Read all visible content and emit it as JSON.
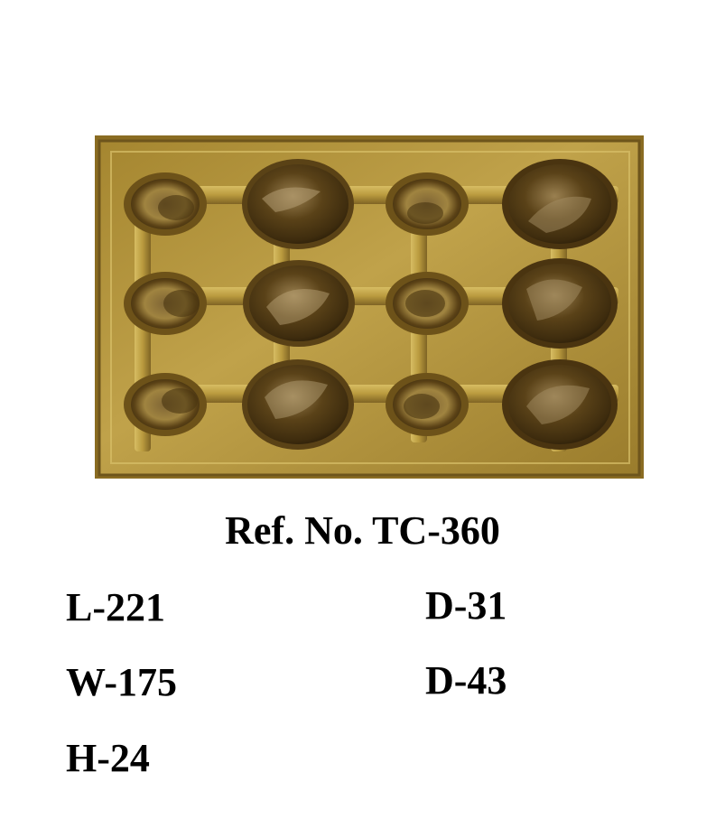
{
  "product": {
    "image_subject": "gold-tray-photo",
    "ref_no": "Ref. No. TC-360",
    "specs_left": [
      "L-221",
      "W-175",
      "H-24"
    ],
    "specs_right": [
      "D-31",
      "D-43"
    ]
  },
  "colors": {
    "tray_gold": "#b19238",
    "cavity_dark": "#4a3410",
    "background": "#ffffff"
  }
}
